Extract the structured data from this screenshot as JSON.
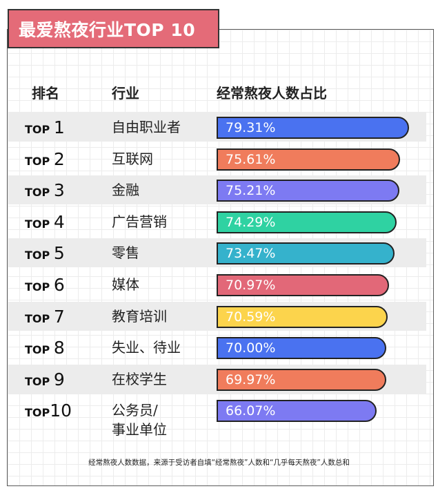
{
  "title": "最爱熬夜行业TOP 10",
  "headers": {
    "rank": "排名",
    "industry": "行业",
    "pct": "经常熬夜人数占比"
  },
  "chart_data": {
    "type": "bar",
    "title": "最爱熬夜行业TOP 10",
    "ylabel": "经常熬夜人数占比",
    "categories": [
      "自由职业者",
      "互联网",
      "金融",
      "广告营销",
      "零售",
      "媒体",
      "教育培训",
      "失业、待业",
      "在校学生",
      "公务员/事业单位"
    ],
    "values": [
      79.31,
      75.61,
      75.21,
      74.29,
      73.47,
      70.97,
      70.59,
      70.0,
      69.97,
      66.07
    ],
    "value_labels": [
      "79.31%",
      "75.61%",
      "75.21%",
      "74.29%",
      "73.47%",
      "70.97%",
      "70.59%",
      "70.00%",
      "69.97%",
      "66.07%"
    ],
    "ranks": [
      {
        "prefix": "TOP",
        "num": "1"
      },
      {
        "prefix": "TOP",
        "num": "2"
      },
      {
        "prefix": "TOP",
        "num": "3"
      },
      {
        "prefix": "TOP",
        "num": "4"
      },
      {
        "prefix": "TOP",
        "num": "5"
      },
      {
        "prefix": "TOP",
        "num": "6"
      },
      {
        "prefix": "TOP",
        "num": "7"
      },
      {
        "prefix": "TOP",
        "num": "8"
      },
      {
        "prefix": "TOP",
        "num": "9"
      },
      {
        "prefix": "TOP",
        "num": "10"
      }
    ],
    "industry_lines": [
      [
        "自由职业者"
      ],
      [
        "互联网"
      ],
      [
        "金融"
      ],
      [
        "广告营销"
      ],
      [
        "零售"
      ],
      [
        "媒体"
      ],
      [
        "教育培训"
      ],
      [
        "失业、待业"
      ],
      [
        "在校学生"
      ],
      [
        "公务员/",
        "事业单位"
      ]
    ],
    "colors": [
      "#4a72f0",
      "#f07c5c",
      "#7d7af2",
      "#2fd2a2",
      "#35b2cc",
      "#e26878",
      "#fcd44c",
      "#4a72f0",
      "#f07c5c",
      "#7d7af2"
    ],
    "orientation": "horizontal",
    "legend": "none",
    "grid": true
  },
  "footnote": "经常熬夜人数数据，来源于受访者自填“经常熬夜”人数和“几乎每天熬夜”人数总和"
}
